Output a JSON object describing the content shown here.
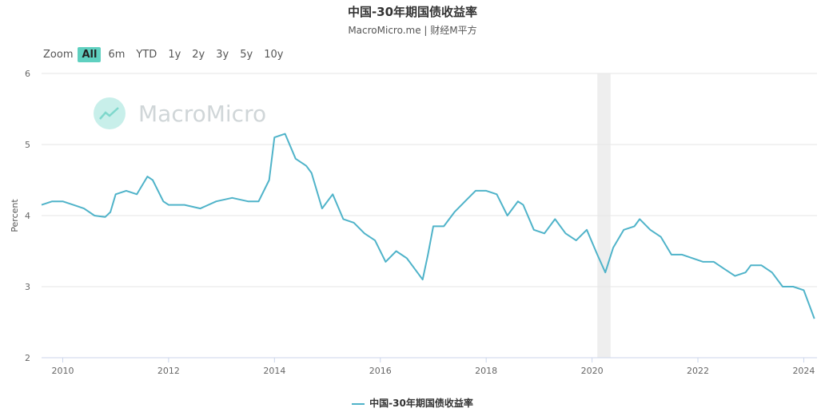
{
  "title": "中国-30年期国债收益率",
  "subtitle": "MacroMicro.me | 财经M平方",
  "watermark": "MacroMicro",
  "zoom": {
    "label": "Zoom",
    "options": [
      "All",
      "6m",
      "YTD",
      "1y",
      "2y",
      "3y",
      "5y",
      "10y"
    ],
    "active": "All"
  },
  "colors": {
    "line": "#4fb3c9",
    "grid": "#e6e6e6",
    "shade": "#eeeeee",
    "active_zoom": "#5fd0c0"
  },
  "chart_data": {
    "type": "line",
    "title": "中国-30年期国债收益率",
    "ylabel": "Percent",
    "ylim": [
      2,
      6
    ],
    "xlim": [
      2009.6,
      2024.25
    ],
    "y_ticks": [
      2,
      3,
      4,
      5,
      6
    ],
    "x_ticks": [
      2010,
      2012,
      2014,
      2016,
      2018,
      2020,
      2022,
      2024
    ],
    "shaded_ranges": [
      [
        2020.1,
        2020.35
      ]
    ],
    "grid": true,
    "legend_position": "bottom-center",
    "series": [
      {
        "name": "中国-30年期国债收益率",
        "x": [
          2009.6,
          2009.8,
          2010.0,
          2010.2,
          2010.4,
          2010.6,
          2010.8,
          2010.9,
          2011.0,
          2011.2,
          2011.4,
          2011.6,
          2011.7,
          2011.9,
          2012.0,
          2012.3,
          2012.6,
          2012.9,
          2013.2,
          2013.5,
          2013.7,
          2013.9,
          2014.0,
          2014.2,
          2014.4,
          2014.6,
          2014.7,
          2014.9,
          2015.1,
          2015.3,
          2015.5,
          2015.7,
          2015.9,
          2016.1,
          2016.3,
          2016.5,
          2016.7,
          2016.8,
          2016.9,
          2017.0,
          2017.2,
          2017.4,
          2017.6,
          2017.8,
          2018.0,
          2018.2,
          2018.4,
          2018.6,
          2018.7,
          2018.9,
          2019.1,
          2019.3,
          2019.5,
          2019.7,
          2019.9,
          2020.1,
          2020.25,
          2020.4,
          2020.6,
          2020.8,
          2020.9,
          2021.1,
          2021.3,
          2021.5,
          2021.7,
          2021.9,
          2022.1,
          2022.3,
          2022.5,
          2022.7,
          2022.9,
          2023.0,
          2023.2,
          2023.4,
          2023.6,
          2023.8,
          2024.0,
          2024.1,
          2024.2
        ],
        "values": [
          4.15,
          4.2,
          4.2,
          4.15,
          4.1,
          4.0,
          3.98,
          4.05,
          4.3,
          4.35,
          4.3,
          4.55,
          4.5,
          4.2,
          4.15,
          4.15,
          4.1,
          4.2,
          4.25,
          4.2,
          4.2,
          4.5,
          5.1,
          5.15,
          4.8,
          4.7,
          4.6,
          4.1,
          4.3,
          3.95,
          3.9,
          3.75,
          3.65,
          3.35,
          3.5,
          3.4,
          3.2,
          3.1,
          3.45,
          3.85,
          3.85,
          4.05,
          4.2,
          4.35,
          4.35,
          4.3,
          4.0,
          4.2,
          4.15,
          3.8,
          3.75,
          3.95,
          3.75,
          3.65,
          3.8,
          3.45,
          3.2,
          3.55,
          3.8,
          3.85,
          3.95,
          3.8,
          3.7,
          3.45,
          3.45,
          3.4,
          3.35,
          3.35,
          3.25,
          3.15,
          3.2,
          3.3,
          3.3,
          3.2,
          3.0,
          3.0,
          2.95,
          2.75,
          2.55
        ]
      }
    ]
  }
}
